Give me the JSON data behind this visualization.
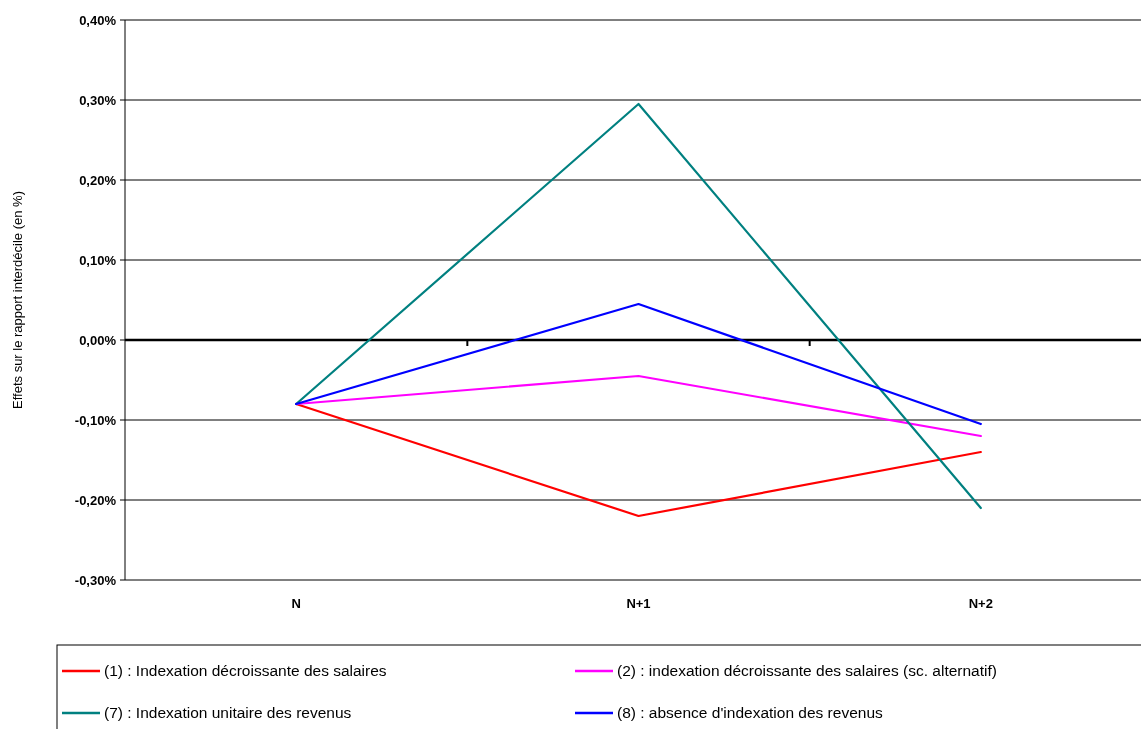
{
  "chart_data": {
    "type": "line",
    "ylabel": "Effets sur le rapport interdécile (en %)",
    "categories": [
      "N",
      "N+1",
      "N+2"
    ],
    "series": [
      {
        "name": "(1) : Indexation décroissante des salaires",
        "color": "#ff0000",
        "values": [
          -0.08,
          -0.22,
          -0.14
        ]
      },
      {
        "name": "(2) : indexation décroissante des salaires (sc. alternatif)",
        "color": "#ff00ff",
        "values": [
          -0.08,
          -0.045,
          -0.12
        ]
      },
      {
        "name": "(7) : Indexation unitaire des revenus",
        "color": "#008080",
        "values": [
          -0.08,
          0.295,
          -0.21
        ]
      },
      {
        "name": "(8) : absence d'indexation des revenus",
        "color": "#0000ff",
        "values": [
          -0.08,
          0.045,
          -0.105
        ]
      }
    ],
    "ylim": [
      -0.3,
      0.4
    ],
    "yticks": [
      {
        "value": -0.3,
        "label": "-0,30%"
      },
      {
        "value": -0.2,
        "label": "-0,20%"
      },
      {
        "value": -0.1,
        "label": "-0,10%"
      },
      {
        "value": 0,
        "label": "0,00%"
      },
      {
        "value": 0.1,
        "label": "0,10%"
      },
      {
        "value": 0.2,
        "label": "0,20%"
      },
      {
        "value": 0.3,
        "label": "0,30%"
      },
      {
        "value": 0.4,
        "label": "0,40%"
      }
    ],
    "grid": "y",
    "legend": "bottom",
    "marker": "none",
    "line_style": "solid"
  }
}
